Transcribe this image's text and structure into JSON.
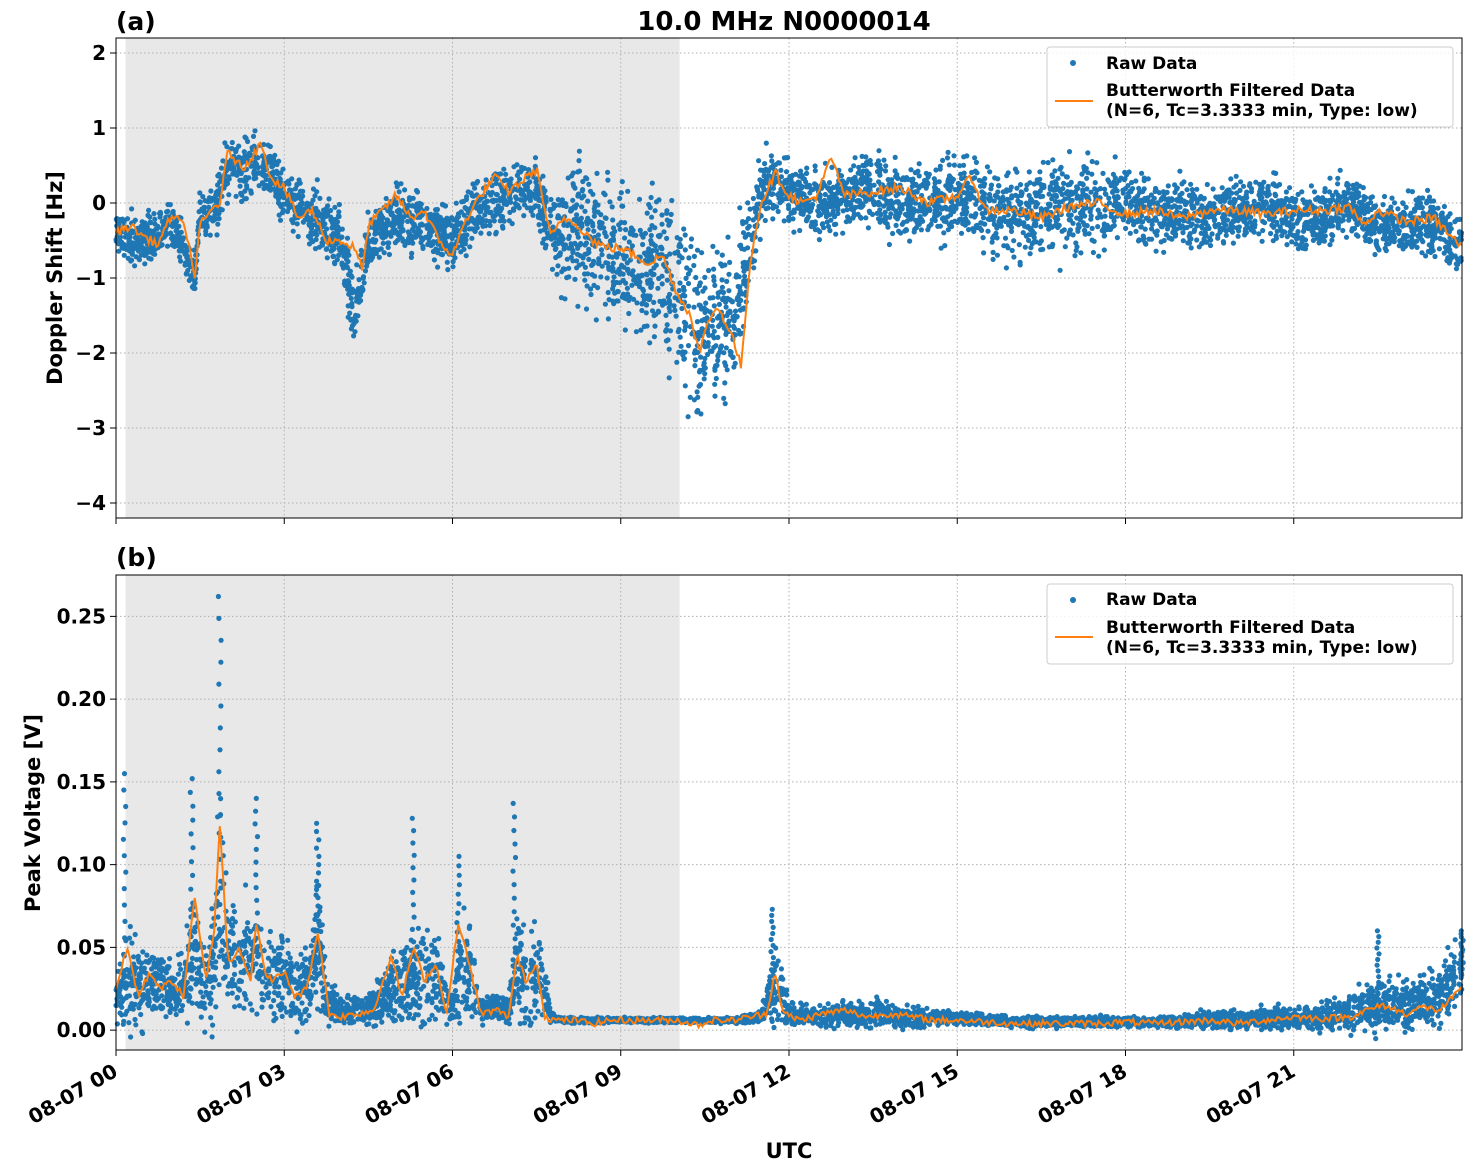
{
  "figure": {
    "title": "10.0 MHz N0000014",
    "xlabel": "UTC",
    "colors": {
      "raw": "#1f77b4",
      "filtered": "#ff7f0e",
      "night_shade": "#e8e8e8",
      "grid": "#b0b0b0"
    }
  },
  "chart_data": [
    {
      "type": "scatter",
      "panel_label": "(a)",
      "title": "10.0 MHz N0000014",
      "xlabel": "",
      "ylabel": "Doppler Shift [Hz]",
      "x_unit": "hours UTC on 08-07",
      "xlim": [
        0,
        24
      ],
      "ylim": [
        -4.2,
        2.2
      ],
      "yticks": [
        2,
        1,
        0,
        -1,
        -2,
        -3,
        -4
      ],
      "ytick_labels": [
        "2",
        "1",
        "0",
        "−1",
        "−2",
        "−3",
        "−4"
      ],
      "grid": true,
      "shaded_region": [
        0.17,
        10.05
      ],
      "legend": {
        "position": "top-right",
        "entries": [
          "Raw Data",
          "Butterworth Filtered Data",
          "(N=6, Tc=3.3333 min, Type: low)"
        ]
      },
      "series": [
        {
          "name": "Raw Data",
          "kind": "scatter",
          "x": [
            0,
            0.5,
            1,
            1.4,
            1.5,
            1.75,
            2,
            2.25,
            2.5,
            2.75,
            3,
            3.5,
            4,
            4.25,
            4.5,
            5,
            5.5,
            6,
            6.5,
            7,
            7.25,
            7.5,
            7.75,
            8,
            8.25,
            8.5,
            8.75,
            9,
            9.25,
            9.5,
            9.75,
            10,
            10.25,
            10.5,
            10.75,
            11,
            11.25,
            11.5,
            11.75,
            12,
            12.5,
            13,
            13.5,
            14,
            14.5,
            15,
            15.5,
            16,
            16.5,
            17,
            17.5,
            18,
            18.5,
            19,
            19.5,
            20,
            20.5,
            21,
            21.5,
            22,
            22.5,
            23,
            23.5,
            24
          ],
          "y_center": [
            -0.4,
            -0.5,
            -0.3,
            -1.0,
            -0.1,
            -0.2,
            0.5,
            0.4,
            0.6,
            0.4,
            0.1,
            -0.2,
            -0.5,
            -1.5,
            -0.5,
            -0.2,
            -0.3,
            -0.5,
            -0.1,
            0.1,
            0.2,
            0.2,
            -0.4,
            -0.5,
            -0.3,
            -0.5,
            -0.6,
            -0.7,
            -0.7,
            -0.8,
            -0.9,
            -1.1,
            -1.6,
            -1.7,
            -1.6,
            -1.5,
            -0.7,
            0.1,
            0.3,
            0.1,
            0.0,
            0.1,
            0.2,
            0.0,
            0.0,
            0.1,
            -0.1,
            -0.1,
            -0.1,
            0.0,
            -0.1,
            0.0,
            -0.1,
            -0.1,
            -0.2,
            -0.1,
            0.0,
            -0.2,
            -0.2,
            0.0,
            -0.3,
            -0.3,
            -0.3,
            -0.6
          ],
          "y_spread": [
            0.35,
            0.4,
            0.4,
            0.35,
            0.4,
            0.5,
            0.55,
            0.45,
            0.5,
            0.45,
            0.45,
            0.5,
            0.55,
            0.55,
            0.5,
            0.55,
            0.5,
            0.5,
            0.5,
            0.5,
            0.45,
            0.5,
            0.7,
            0.9,
            1.0,
            1.1,
            1.1,
            1.1,
            1.2,
            1.3,
            1.3,
            1.3,
            1.5,
            1.3,
            1.2,
            1.2,
            0.9,
            0.6,
            0.5,
            0.5,
            0.5,
            0.5,
            0.6,
            0.6,
            0.6,
            0.7,
            0.7,
            0.8,
            0.8,
            0.8,
            0.7,
            0.6,
            0.6,
            0.6,
            0.5,
            0.5,
            0.5,
            0.5,
            0.5,
            0.5,
            0.5,
            0.5,
            0.5,
            0.5
          ]
        },
        {
          "name": "Butterworth Filtered Data",
          "kind": "line",
          "x": [
            0,
            0.25,
            0.5,
            0.75,
            1,
            1.25,
            1.4,
            1.5,
            1.75,
            1.85,
            2,
            2.25,
            2.5,
            2.6,
            2.75,
            3,
            3.25,
            3.5,
            3.75,
            4,
            4.25,
            4.4,
            4.5,
            4.75,
            5,
            5.25,
            5.5,
            5.75,
            6,
            6.25,
            6.5,
            6.75,
            7,
            7.25,
            7.5,
            7.75,
            8,
            8.25,
            8.5,
            8.75,
            9,
            9.25,
            9.5,
            9.75,
            10,
            10.25,
            10.4,
            10.6,
            10.75,
            11,
            11.15,
            11.3,
            11.5,
            11.75,
            12,
            12.25,
            12.5,
            12.75,
            13,
            13.5,
            14,
            14.5,
            15,
            15.25,
            15.5,
            16,
            16.5,
            17,
            17.5,
            18,
            18.5,
            19,
            19.5,
            20,
            20.5,
            21,
            21.5,
            22,
            22.25,
            22.5,
            23,
            23.5,
            24
          ],
          "y": [
            -0.4,
            -0.3,
            -0.45,
            -0.55,
            -0.15,
            -0.35,
            -1.0,
            -0.3,
            -0.05,
            0.0,
            0.7,
            0.45,
            0.7,
            0.8,
            0.35,
            0.2,
            -0.2,
            -0.1,
            -0.5,
            -0.5,
            -0.6,
            -0.9,
            -0.3,
            -0.1,
            0.1,
            -0.2,
            -0.1,
            -0.5,
            -0.7,
            -0.2,
            0.1,
            0.35,
            0.15,
            0.3,
            0.45,
            -0.45,
            -0.2,
            -0.3,
            -0.5,
            -0.6,
            -0.6,
            -0.7,
            -0.8,
            -0.7,
            -1.2,
            -1.5,
            -2.0,
            -1.5,
            -1.4,
            -1.8,
            -2.2,
            -0.8,
            0.0,
            0.4,
            0.1,
            0.0,
            0.1,
            0.6,
            0.1,
            0.15,
            0.2,
            0.0,
            0.1,
            0.35,
            -0.1,
            -0.1,
            -0.2,
            -0.05,
            0.0,
            -0.15,
            -0.1,
            -0.2,
            -0.1,
            -0.1,
            -0.15,
            -0.1,
            -0.1,
            -0.05,
            -0.3,
            -0.1,
            -0.25,
            -0.2,
            -0.6
          ]
        }
      ]
    },
    {
      "type": "scatter",
      "panel_label": "(b)",
      "title": "",
      "xlabel": "UTC",
      "ylabel": "Peak Voltage [V]",
      "x_unit": "hours UTC on 08-07",
      "xlim": [
        0,
        24
      ],
      "ylim": [
        -0.012,
        0.275
      ],
      "yticks": [
        0,
        0.05,
        0.1,
        0.15,
        0.2,
        0.25
      ],
      "ytick_labels": [
        "0.00",
        "0.05",
        "0.10",
        "0.15",
        "0.20",
        "0.25"
      ],
      "xticks": [
        0,
        3,
        6,
        9,
        12,
        15,
        18,
        21
      ],
      "xtick_labels": [
        "08-07 00",
        "08-07 03",
        "08-07 06",
        "08-07 09",
        "08-07 12",
        "08-07 15",
        "08-07 18",
        "08-07 21"
      ],
      "grid": true,
      "shaded_region": [
        0.17,
        10.05
      ],
      "legend": {
        "position": "top-right",
        "entries": [
          "Raw Data",
          "Butterworth Filtered Data",
          "(N=6, Tc=3.3333 min, Type: low)"
        ]
      },
      "series": [
        {
          "name": "Raw Data",
          "kind": "scatter",
          "x": [
            0,
            0.25,
            0.5,
            0.75,
            1,
            1.25,
            1.4,
            1.5,
            1.75,
            1.85,
            2,
            2.25,
            2.5,
            2.75,
            3,
            3.25,
            3.5,
            3.6,
            3.75,
            4,
            4.5,
            5,
            5.25,
            5.5,
            5.75,
            6,
            6.15,
            6.3,
            6.5,
            6.75,
            7,
            7.15,
            7.3,
            7.5,
            7.6,
            7.75,
            8,
            9,
            9.5,
            10,
            10.5,
            11,
            11.5,
            11.75,
            12,
            12.5,
            13,
            13.5,
            14,
            14.5,
            15,
            15.5,
            16,
            17,
            18,
            19,
            19.5,
            20,
            20.5,
            21,
            21.5,
            22,
            22.5,
            23,
            23.5,
            24
          ],
          "y_center": [
            0.02,
            0.03,
            0.025,
            0.03,
            0.02,
            0.03,
            0.05,
            0.03,
            0.04,
            0.09,
            0.04,
            0.05,
            0.04,
            0.035,
            0.03,
            0.025,
            0.03,
            0.06,
            0.02,
            0.012,
            0.012,
            0.025,
            0.03,
            0.035,
            0.03,
            0.012,
            0.04,
            0.035,
            0.012,
            0.015,
            0.012,
            0.04,
            0.035,
            0.03,
            0.035,
            0.008,
            0.006,
            0.006,
            0.006,
            0.006,
            0.006,
            0.006,
            0.008,
            0.03,
            0.01,
            0.008,
            0.01,
            0.01,
            0.008,
            0.008,
            0.007,
            0.006,
            0.005,
            0.005,
            0.005,
            0.005,
            0.006,
            0.006,
            0.007,
            0.008,
            0.008,
            0.01,
            0.015,
            0.015,
            0.02,
            0.035
          ],
          "y_spread": [
            0.02,
            0.04,
            0.025,
            0.025,
            0.02,
            0.03,
            0.05,
            0.03,
            0.05,
            0.09,
            0.04,
            0.05,
            0.04,
            0.035,
            0.03,
            0.03,
            0.03,
            0.06,
            0.02,
            0.01,
            0.01,
            0.03,
            0.03,
            0.04,
            0.03,
            0.01,
            0.04,
            0.04,
            0.01,
            0.01,
            0.01,
            0.04,
            0.05,
            0.03,
            0.03,
            0.003,
            0.002,
            0.002,
            0.002,
            0.002,
            0.002,
            0.002,
            0.004,
            0.03,
            0.008,
            0.008,
            0.01,
            0.01,
            0.008,
            0.006,
            0.005,
            0.004,
            0.004,
            0.004,
            0.004,
            0.004,
            0.008,
            0.006,
            0.008,
            0.008,
            0.01,
            0.015,
            0.02,
            0.02,
            0.02,
            0.03
          ],
          "y_peaks": [
            [
              0.15,
              0.155
            ],
            [
              1.35,
              0.152
            ],
            [
              1.85,
              0.262
            ],
            [
              2.5,
              0.14
            ],
            [
              3.6,
              0.125
            ],
            [
              5.3,
              0.128
            ],
            [
              6.1,
              0.105
            ],
            [
              7.1,
              0.137
            ],
            [
              11.7,
              0.073
            ],
            [
              22.5,
              0.06
            ],
            [
              24,
              0.06
            ]
          ]
        },
        {
          "name": "Butterworth Filtered Data",
          "kind": "line",
          "x": [
            0,
            0.2,
            0.4,
            0.6,
            0.8,
            1,
            1.2,
            1.4,
            1.6,
            1.75,
            1.85,
            2,
            2.2,
            2.4,
            2.5,
            2.65,
            2.8,
            3,
            3.2,
            3.4,
            3.6,
            3.8,
            4,
            4.3,
            4.6,
            4.9,
            5.1,
            5.3,
            5.5,
            5.7,
            5.9,
            6.1,
            6.3,
            6.5,
            6.8,
            7,
            7.15,
            7.3,
            7.5,
            7.65,
            7.8,
            8.2,
            8.5,
            8.8,
            9.2,
            9.5,
            10,
            10.4,
            10.6,
            11,
            11.3,
            11.6,
            11.75,
            11.9,
            12.2,
            12.6,
            13,
            13.4,
            13.8,
            14.2,
            14.6,
            15,
            15.5,
            16,
            16.5,
            17,
            17.5,
            18,
            18.5,
            19,
            19.5,
            20,
            20.5,
            21,
            21.5,
            22,
            22.3,
            22.6,
            23,
            23.3,
            23.6,
            24
          ],
          "y": [
            0.025,
            0.05,
            0.02,
            0.035,
            0.025,
            0.03,
            0.02,
            0.08,
            0.03,
            0.06,
            0.125,
            0.04,
            0.05,
            0.03,
            0.065,
            0.035,
            0.03,
            0.035,
            0.02,
            0.025,
            0.06,
            0.01,
            0.008,
            0.01,
            0.012,
            0.045,
            0.02,
            0.05,
            0.03,
            0.04,
            0.01,
            0.065,
            0.04,
            0.01,
            0.012,
            0.008,
            0.045,
            0.03,
            0.04,
            0.008,
            0.006,
            0.006,
            0.004,
            0.006,
            0.006,
            0.006,
            0.006,
            0.003,
            0.006,
            0.006,
            0.008,
            0.01,
            0.035,
            0.01,
            0.006,
            0.01,
            0.012,
            0.008,
            0.01,
            0.008,
            0.006,
            0.006,
            0.005,
            0.004,
            0.004,
            0.004,
            0.004,
            0.005,
            0.004,
            0.005,
            0.006,
            0.004,
            0.006,
            0.008,
            0.007,
            0.008,
            0.012,
            0.015,
            0.01,
            0.014,
            0.012,
            0.025
          ]
        }
      ]
    }
  ]
}
